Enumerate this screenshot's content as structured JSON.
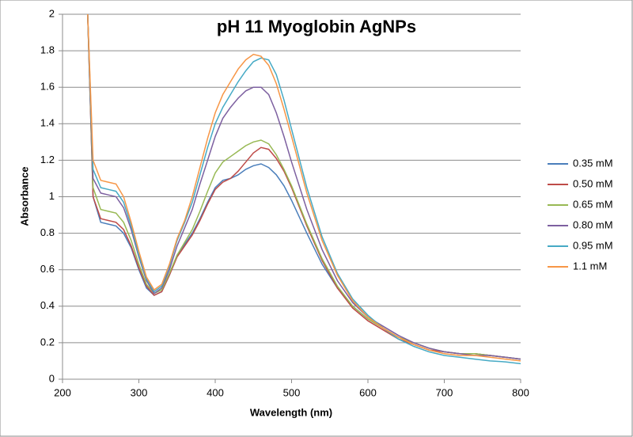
{
  "chart_data": {
    "type": "line",
    "title": "pH 11 Myoglobin AgNPs",
    "x_label": "Wavelength (nm)",
    "y_label": "Absorbance",
    "x": [
      233,
      240,
      250,
      260,
      270,
      280,
      290,
      300,
      310,
      320,
      330,
      340,
      350,
      360,
      370,
      380,
      390,
      400,
      410,
      420,
      430,
      440,
      450,
      460,
      470,
      480,
      490,
      500,
      520,
      540,
      560,
      580,
      600,
      620,
      640,
      660,
      680,
      700,
      720,
      740,
      760,
      780,
      800
    ],
    "series": [
      {
        "name": "0.35 mM",
        "color": "#4a7ebb",
        "values": [
          2,
          1.0,
          0.86,
          0.85,
          0.84,
          0.8,
          0.72,
          0.6,
          0.5,
          0.46,
          0.48,
          0.57,
          0.68,
          0.74,
          0.8,
          0.88,
          0.97,
          1.05,
          1.09,
          1.1,
          1.12,
          1.15,
          1.17,
          1.18,
          1.16,
          1.12,
          1.06,
          0.98,
          0.8,
          0.63,
          0.5,
          0.4,
          0.33,
          0.28,
          0.23,
          0.2,
          0.17,
          0.15,
          0.14,
          0.14,
          0.13,
          0.12,
          0.11
        ]
      },
      {
        "name": "0.50 mM",
        "color": "#be4b48",
        "values": [
          2,
          1.0,
          0.88,
          0.87,
          0.86,
          0.82,
          0.73,
          0.61,
          0.51,
          0.46,
          0.48,
          0.57,
          0.67,
          0.73,
          0.79,
          0.87,
          0.96,
          1.04,
          1.08,
          1.1,
          1.14,
          1.19,
          1.24,
          1.27,
          1.26,
          1.21,
          1.14,
          1.05,
          0.84,
          0.65,
          0.5,
          0.39,
          0.32,
          0.27,
          0.22,
          0.19,
          0.16,
          0.15,
          0.14,
          0.14,
          0.13,
          0.12,
          0.11
        ]
      },
      {
        "name": "0.65 mM",
        "color": "#98b954",
        "values": [
          2,
          1.05,
          0.93,
          0.92,
          0.91,
          0.86,
          0.76,
          0.63,
          0.52,
          0.47,
          0.49,
          0.58,
          0.68,
          0.75,
          0.82,
          0.92,
          1.03,
          1.13,
          1.19,
          1.22,
          1.25,
          1.28,
          1.3,
          1.31,
          1.29,
          1.23,
          1.15,
          1.06,
          0.85,
          0.66,
          0.51,
          0.4,
          0.33,
          0.28,
          0.23,
          0.2,
          0.17,
          0.15,
          0.14,
          0.14,
          0.13,
          0.12,
          0.11
        ]
      },
      {
        "name": "0.80 mM",
        "color": "#7d60a0",
        "values": [
          2,
          1.1,
          1.02,
          1.01,
          1.0,
          0.94,
          0.82,
          0.67,
          0.54,
          0.47,
          0.5,
          0.6,
          0.73,
          0.83,
          0.93,
          1.07,
          1.2,
          1.33,
          1.43,
          1.49,
          1.54,
          1.58,
          1.6,
          1.6,
          1.56,
          1.46,
          1.33,
          1.19,
          0.93,
          0.71,
          0.54,
          0.42,
          0.34,
          0.29,
          0.24,
          0.2,
          0.17,
          0.15,
          0.14,
          0.13,
          0.13,
          0.12,
          0.11
        ]
      },
      {
        "name": "0.95 mM",
        "color": "#46aac5",
        "values": [
          2,
          1.15,
          1.05,
          1.04,
          1.03,
          0.97,
          0.84,
          0.68,
          0.55,
          0.48,
          0.51,
          0.62,
          0.76,
          0.86,
          0.97,
          1.12,
          1.27,
          1.4,
          1.49,
          1.56,
          1.63,
          1.69,
          1.74,
          1.76,
          1.75,
          1.67,
          1.53,
          1.37,
          1.05,
          0.78,
          0.58,
          0.44,
          0.35,
          0.28,
          0.22,
          0.18,
          0.15,
          0.13,
          0.12,
          0.11,
          0.1,
          0.095,
          0.085
        ]
      },
      {
        "name": "1.1 mM",
        "color": "#f79646",
        "values": [
          2,
          1.2,
          1.09,
          1.08,
          1.07,
          1.0,
          0.86,
          0.7,
          0.56,
          0.49,
          0.52,
          0.63,
          0.77,
          0.87,
          1.0,
          1.16,
          1.32,
          1.46,
          1.56,
          1.63,
          1.7,
          1.75,
          1.78,
          1.77,
          1.72,
          1.62,
          1.48,
          1.33,
          1.02,
          0.76,
          0.57,
          0.43,
          0.34,
          0.28,
          0.23,
          0.19,
          0.16,
          0.14,
          0.13,
          0.13,
          0.12,
          0.11,
          0.1
        ]
      }
    ],
    "xlim": [
      200,
      800
    ],
    "xticks": [
      200,
      300,
      400,
      500,
      600,
      700,
      800
    ],
    "ylim": [
      0,
      2
    ],
    "yticks": [
      0,
      0.2,
      0.4,
      0.6,
      0.8,
      1,
      1.2,
      1.4,
      1.6,
      1.8,
      2
    ],
    "grid": true,
    "legend": "right"
  }
}
